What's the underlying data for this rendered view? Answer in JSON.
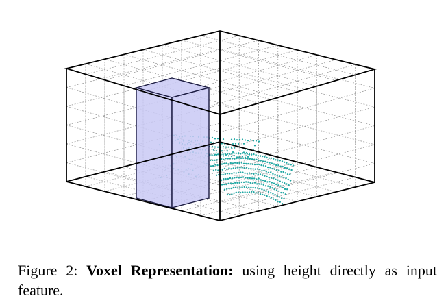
{
  "caption": {
    "label": "Figure 2:",
    "bold_title": "Voxel Representation:",
    "text": "using height directly as input feature."
  },
  "figure": {
    "box_color": "#000000",
    "grid_color": "#9a9a9a",
    "voxel_fill": "#c9c9f4",
    "voxel_stroke": "#1a1a40",
    "point_color": "#1fa7a3"
  }
}
